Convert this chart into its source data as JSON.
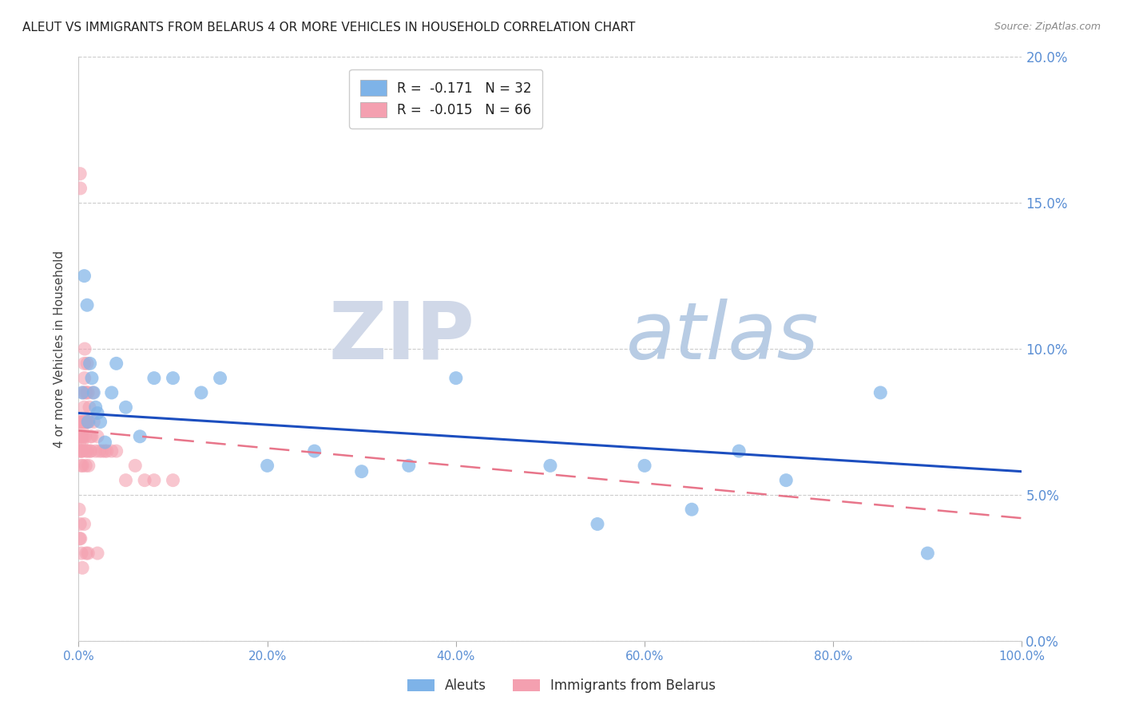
{
  "title": "ALEUT VS IMMIGRANTS FROM BELARUS 4 OR MORE VEHICLES IN HOUSEHOLD CORRELATION CHART",
  "source_text": "Source: ZipAtlas.com",
  "ylabel": "4 or more Vehicles in Household",
  "legend_labels": [
    "Aleuts",
    "Immigrants from Belarus"
  ],
  "legend_R": [
    -0.171,
    -0.015
  ],
  "legend_N": [
    32,
    66
  ],
  "blue_color": "#7EB3E8",
  "pink_color": "#F4A0B0",
  "trend_blue": "#1C4EBF",
  "trend_pink": "#E8758A",
  "axis_label_color": "#5B8FD4",
  "background_color": "#FFFFFF",
  "watermark_zip": "ZIP",
  "watermark_atlas": "atlas",
  "watermark_color_zip": "#C8D8F0",
  "watermark_color_atlas": "#A8C4E8",
  "xmin": 0.0,
  "xmax": 100.0,
  "ymin": 0.0,
  "ymax": 20.0,
  "yticks": [
    0.0,
    5.0,
    10.0,
    15.0,
    20.0
  ],
  "xticks": [
    0.0,
    20.0,
    40.0,
    60.0,
    80.0,
    100.0
  ],
  "aleut_x": [
    0.4,
    0.6,
    0.9,
    1.0,
    1.2,
    1.4,
    1.6,
    1.8,
    2.0,
    2.3,
    2.8,
    3.5,
    4.0,
    5.0,
    6.5,
    8.0,
    10.0,
    13.0,
    15.0,
    20.0,
    25.0,
    30.0,
    35.0,
    40.0,
    50.0,
    55.0,
    60.0,
    65.0,
    70.0,
    75.0,
    85.0,
    90.0
  ],
  "aleut_y": [
    8.5,
    12.5,
    11.5,
    7.5,
    9.5,
    9.0,
    8.5,
    8.0,
    7.8,
    7.5,
    6.8,
    8.5,
    9.5,
    8.0,
    7.0,
    9.0,
    9.0,
    8.5,
    9.0,
    6.0,
    6.5,
    5.8,
    6.0,
    9.0,
    6.0,
    4.0,
    6.0,
    4.5,
    6.5,
    5.5,
    8.5,
    3.0
  ],
  "belarus_x": [
    0.05,
    0.08,
    0.1,
    0.12,
    0.15,
    0.18,
    0.2,
    0.22,
    0.25,
    0.28,
    0.3,
    0.32,
    0.35,
    0.38,
    0.4,
    0.42,
    0.45,
    0.48,
    0.5,
    0.55,
    0.58,
    0.6,
    0.62,
    0.65,
    0.7,
    0.72,
    0.75,
    0.78,
    0.8,
    0.85,
    0.88,
    0.9,
    0.95,
    1.0,
    1.05,
    1.1,
    1.15,
    1.2,
    1.25,
    1.3,
    1.4,
    1.5,
    1.6,
    1.8,
    2.0,
    2.2,
    2.5,
    2.8,
    3.0,
    3.5,
    4.0,
    5.0,
    6.0,
    7.0,
    8.0,
    10.0,
    0.05,
    0.1,
    0.15,
    0.2,
    0.6,
    0.8,
    0.3,
    0.4,
    1.0,
    2.0
  ],
  "belarus_y": [
    7.5,
    6.5,
    7.0,
    6.8,
    16.0,
    15.5,
    7.5,
    7.0,
    6.5,
    6.0,
    7.0,
    6.5,
    6.8,
    7.2,
    6.5,
    6.0,
    7.5,
    8.5,
    7.0,
    7.5,
    8.0,
    9.5,
    9.0,
    10.0,
    7.0,
    8.5,
    6.0,
    7.5,
    6.5,
    8.5,
    7.5,
    9.5,
    6.5,
    8.5,
    6.0,
    7.5,
    8.0,
    6.5,
    7.0,
    6.5,
    7.0,
    8.5,
    7.5,
    6.5,
    7.0,
    6.5,
    6.5,
    6.5,
    6.5,
    6.5,
    6.5,
    5.5,
    6.0,
    5.5,
    5.5,
    5.5,
    4.5,
    3.5,
    4.0,
    3.5,
    4.0,
    3.0,
    3.0,
    2.5,
    3.0,
    3.0
  ]
}
